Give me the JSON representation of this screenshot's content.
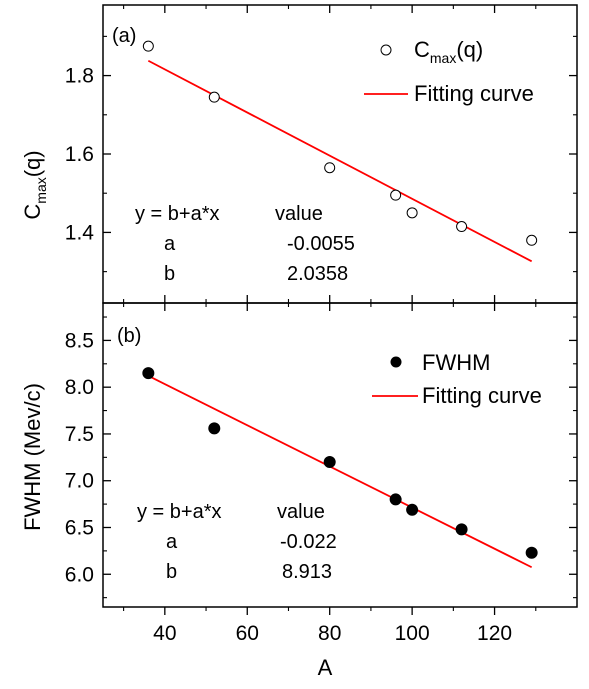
{
  "chart_data": [
    {
      "type": "scatter",
      "panel_label": "(a)",
      "ylabel_main": "C",
      "ylabel_sub": "max",
      "ylabel_tail": "(q)",
      "xlim": [
        25,
        140
      ],
      "ylim": [
        1.22,
        1.98
      ],
      "yticks": [
        1.4,
        1.6,
        1.8
      ],
      "ytick_labels": [
        "1.4",
        "1.6",
        "1.8"
      ],
      "series": [
        {
          "name_main": "C",
          "name_sub": "max",
          "name_tail": "(q)",
          "marker": "open-circle",
          "x": [
            36,
            52,
            80,
            96,
            100,
            112,
            129
          ],
          "y": [
            1.875,
            1.745,
            1.565,
            1.495,
            1.45,
            1.415,
            1.38
          ]
        },
        {
          "name": "Fitting curve",
          "line": "fit",
          "color": "#ff0000",
          "intercept": 2.0358,
          "slope": -0.0055,
          "x_range": [
            36,
            129
          ]
        }
      ],
      "fit_table": {
        "header": [
          "y = b+a*x",
          "value"
        ],
        "rows": [
          [
            "a",
            "-0.0055"
          ],
          [
            "b",
            "2.0358"
          ]
        ]
      }
    },
    {
      "type": "scatter",
      "panel_label": "(b)",
      "ylabel": "FWHM (Mev/c)",
      "xlabel": "A",
      "xlim": [
        25,
        140
      ],
      "ylim": [
        5.65,
        8.9
      ],
      "xticks": [
        40,
        60,
        80,
        100,
        120
      ],
      "xtick_labels": [
        "40",
        "60",
        "80",
        "100",
        "120"
      ],
      "yticks": [
        6.0,
        6.5,
        7.0,
        7.5,
        8.0,
        8.5
      ],
      "ytick_labels": [
        "6.0",
        "6.5",
        "7.0",
        "7.5",
        "8.0",
        "8.5"
      ],
      "series": [
        {
          "name": "FWHM",
          "marker": "filled-circle",
          "x": [
            36,
            52,
            80,
            96,
            100,
            112,
            129
          ],
          "y": [
            8.15,
            7.56,
            7.2,
            6.8,
            6.69,
            6.48,
            6.23
          ]
        },
        {
          "name": "Fitting curve",
          "line": "fit",
          "color": "#ff0000",
          "intercept": 8.913,
          "slope": -0.022,
          "x_range": [
            36,
            129
          ]
        }
      ],
      "fit_table": {
        "header": [
          "y = b+a*x",
          "value"
        ],
        "rows": [
          [
            "a",
            "-0.022"
          ],
          [
            "b",
            "8.913"
          ]
        ]
      }
    }
  ]
}
